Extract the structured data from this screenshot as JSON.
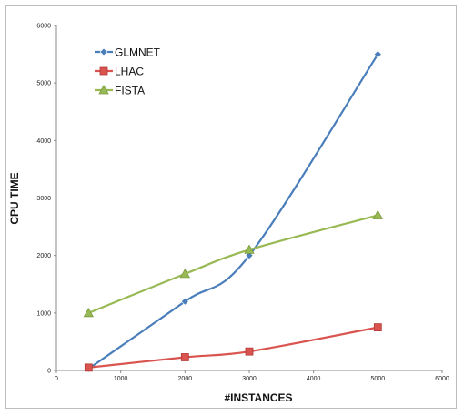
{
  "chart_data": {
    "type": "line",
    "title": "",
    "xlabel": "#INSTANCES",
    "ylabel": "CPU TIME",
    "xlim": [
      0,
      6000
    ],
    "ylim": [
      0,
      6000
    ],
    "xticks": [
      0,
      1000,
      2000,
      3000,
      4000,
      5000,
      6000
    ],
    "yticks": [
      0,
      1000,
      2000,
      3000,
      4000,
      5000,
      6000
    ],
    "grid": false,
    "legend": "top-left",
    "series": [
      {
        "name": "GLMNET",
        "color": "#4a7ebb",
        "marker": "diamond",
        "x": [
          500,
          2000,
          3000,
          5000
        ],
        "y": [
          30,
          1200,
          2000,
          5500
        ]
      },
      {
        "name": "LHAC",
        "color": "#d9534f",
        "marker": "square",
        "x": [
          500,
          2000,
          3000,
          5000
        ],
        "y": [
          50,
          230,
          330,
          750
        ]
      },
      {
        "name": "FISTA",
        "color": "#98b954",
        "marker": "triangle",
        "x": [
          500,
          2000,
          3000,
          5000
        ],
        "y": [
          1000,
          1680,
          2100,
          2700
        ]
      }
    ]
  }
}
